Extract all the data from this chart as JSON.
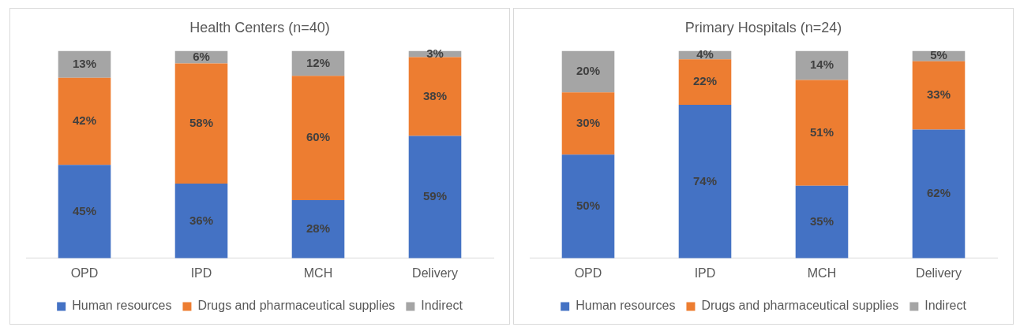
{
  "chart_data": [
    {
      "type": "bar",
      "title": "Health Centers (n=40)",
      "categories": [
        "OPD",
        "IPD",
        "MCH",
        "Delivery"
      ],
      "stacked": true,
      "legend": "bottom",
      "tick_labels": "x",
      "series": [
        {
          "name": "Human resources",
          "color": "#4472c4",
          "values": [
            45,
            36,
            28,
            59
          ],
          "value_labels": [
            "45%",
            "36%",
            "28%",
            "59%"
          ]
        },
        {
          "name": "Drugs and pharmaceutical supplies",
          "color": "#ed7d31",
          "values": [
            42,
            58,
            60,
            38
          ],
          "value_labels": [
            "42%",
            "58%",
            "60%",
            "38%"
          ]
        },
        {
          "name": "Indirect",
          "color": "#a5a5a5",
          "values": [
            13,
            6,
            12,
            3
          ],
          "value_labels": [
            "13%",
            "6%",
            "12%",
            "3%"
          ]
        }
      ]
    },
    {
      "type": "bar",
      "title": "Primary Hospitals (n=24)",
      "categories": [
        "OPD",
        "IPD",
        "MCH",
        "Delivery"
      ],
      "stacked": true,
      "legend": "bottom",
      "tick_labels": "x",
      "series": [
        {
          "name": "Human resources",
          "color": "#4472c4",
          "values": [
            50,
            74,
            35,
            62
          ],
          "value_labels": [
            "50%",
            "74%",
            "35%",
            "62%"
          ]
        },
        {
          "name": "Drugs and pharmaceutical supplies",
          "color": "#ed7d31",
          "values": [
            30,
            22,
            51,
            33
          ],
          "value_labels": [
            "30%",
            "22%",
            "51%",
            "33%"
          ]
        },
        {
          "name": "Indirect",
          "color": "#a5a5a5",
          "values": [
            20,
            4,
            14,
            5
          ],
          "value_labels": [
            "20%",
            "4%",
            "14%",
            "5%"
          ]
        }
      ]
    }
  ]
}
